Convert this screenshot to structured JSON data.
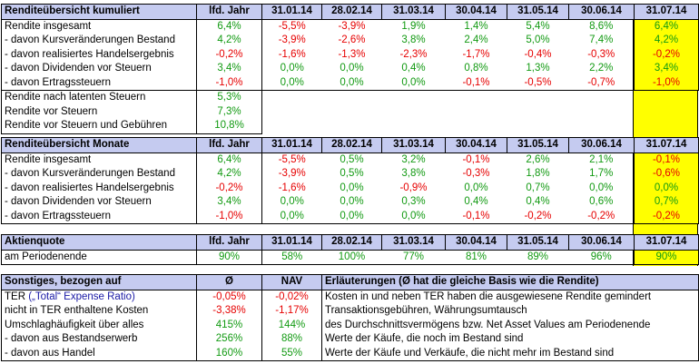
{
  "section1": {
    "header": [
      "Renditeübersicht kumuliert",
      "lfd. Jahr",
      "31.01.14",
      "28.02.14",
      "31.03.14",
      "30.04.14",
      "31.05.14",
      "30.06.14",
      "31.07.14"
    ],
    "rows": [
      [
        "Rendite insgesamt",
        "6,4%",
        "-5,5%",
        "-3,9%",
        "1,9%",
        "1,4%",
        "5,4%",
        "8,6%",
        "6,4%"
      ],
      [
        "- davon Kursveränderungen Bestand",
        "4,2%",
        "-3,9%",
        "-2,6%",
        "3,8%",
        "2,4%",
        "5,0%",
        "7,4%",
        "4,2%"
      ],
      [
        "- davon realisiertes Handelsergebnis",
        "-0,2%",
        "-1,6%",
        "-1,3%",
        "-2,3%",
        "-1,7%",
        "-0,4%",
        "-0,3%",
        "-0,2%"
      ],
      [
        "- davon Dividenden vor Steuern",
        "3,4%",
        "0,0%",
        "0,0%",
        "0,4%",
        "0,8%",
        "1,3%",
        "2,2%",
        "3,4%"
      ],
      [
        "- davon Ertragssteuern",
        "-1,0%",
        "0,0%",
        "0,0%",
        "0,0%",
        "-0,1%",
        "-0,5%",
        "-0,7%",
        "-1,0%"
      ]
    ],
    "extra": [
      [
        "Rendite nach latenten Steuern",
        "5,3%"
      ],
      [
        "Rendite vor Steuern",
        "7,3%"
      ],
      [
        "Rendite vor Steuern und Gebühren",
        "10,8%"
      ]
    ]
  },
  "section2": {
    "header": [
      "Renditeübersicht Monate",
      "lfd. Jahr",
      "31.01.14",
      "28.02.14",
      "31.03.14",
      "30.04.14",
      "31.05.14",
      "30.06.14",
      "31.07.14"
    ],
    "rows": [
      [
        "Rendite insgesamt",
        "6,4%",
        "-5,5%",
        "0,5%",
        "3,2%",
        "-0,1%",
        "2,6%",
        "2,1%",
        "-0,1%"
      ],
      [
        "- davon Kursveränderungen Bestand",
        "4,2%",
        "-3,9%",
        "0,5%",
        "3,8%",
        "-0,3%",
        "1,8%",
        "1,7%",
        "-0,6%"
      ],
      [
        "- davon realisiertes Handelsergebnis",
        "-0,2%",
        "-1,6%",
        "0,0%",
        "-0,9%",
        "0,0%",
        "0,7%",
        "0,0%",
        "0,0%"
      ],
      [
        "- davon Dividenden vor Steuern",
        "3,4%",
        "0,0%",
        "0,0%",
        "0,3%",
        "0,4%",
        "0,4%",
        "0,6%",
        "0,7%"
      ],
      [
        "- davon Ertragssteuern",
        "-1,0%",
        "0,0%",
        "0,0%",
        "0,0%",
        "-0,1%",
        "-0,2%",
        "-0,2%",
        "-0,2%"
      ]
    ]
  },
  "section3": {
    "header": [
      "Aktienquote",
      "lfd. Jahr",
      "31.01.14",
      "28.02.14",
      "31.03.14",
      "30.04.14",
      "31.05.14",
      "30.06.14",
      "31.07.14"
    ],
    "row": [
      "am Periodenende",
      "90%",
      "58%",
      "100%",
      "77%",
      "81%",
      "89%",
      "96%",
      "90%"
    ]
  },
  "section4": {
    "header": [
      "Sonstiges, bezogen auf",
      "Ø",
      "NAV",
      "Erläuterungen (Ø hat die gleiche Basis wie die Rendite)"
    ],
    "ter_label": "TER",
    "ter_link": "(„Total“ Expense Ratio)",
    "rows": [
      [
        "",
        "-0,05%",
        "-0,02%",
        "Kosten in und neben TER haben die ausgewiesene Rendite gemindert"
      ],
      [
        "nicht in TER enthaltene Kosten",
        "-3,38%",
        "-1,17%",
        "Transaktionsgebühren, Währungsumtausch"
      ],
      [
        "Umschlaghäufigkeit über alles",
        "415%",
        "144%",
        "des Durchschnittsvermögens bzw. Net Asset Values am Periodenende"
      ],
      [
        "- davon aus Bestandserwerb",
        "256%",
        "88%",
        "Werte der Käufe, die noch im Bestand sind"
      ],
      [
        "- davon aus Handel",
        "160%",
        "55%",
        "Werte der Käufe und Verkäufe, die nicht mehr im Bestand sind"
      ]
    ]
  }
}
